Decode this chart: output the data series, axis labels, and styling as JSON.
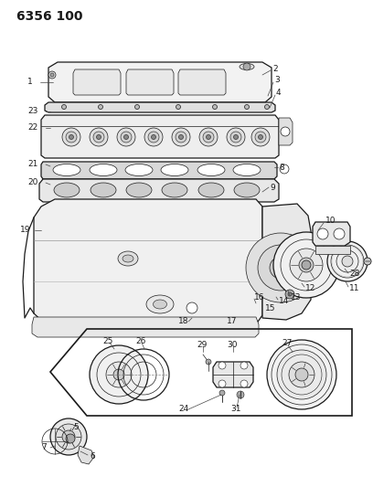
{
  "title": "6356 100",
  "bg_color": "#ffffff",
  "line_color": "#1a1a1a",
  "title_fontsize": 10,
  "label_fontsize": 6.5,
  "fig_width": 4.08,
  "fig_height": 5.33,
  "dpi": 100
}
